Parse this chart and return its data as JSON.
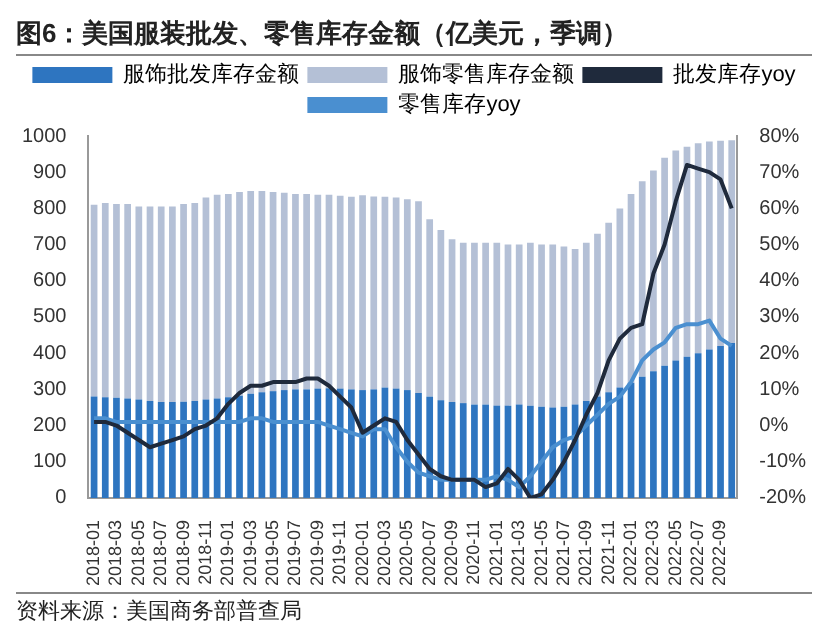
{
  "chart_data": {
    "type": "bar",
    "title": "图6：美国服装批发、零售库存金额（亿美元，季调）",
    "annotations": [
      "资料来源：美国商务部普查局"
    ],
    "categories": [
      "2018-01",
      null,
      "2018-03",
      null,
      "2018-05",
      null,
      "2018-07",
      null,
      "2018-09",
      null,
      "2018-11",
      null,
      "2019-01",
      null,
      "2019-03",
      null,
      "2019-05",
      null,
      "2019-07",
      null,
      "2019-09",
      null,
      "2019-11",
      null,
      "2020-01",
      null,
      "2020-03",
      null,
      "2020-05",
      null,
      "2020-07",
      null,
      "2020-09",
      null,
      "2020-11",
      null,
      "2021-01",
      null,
      "2021-03",
      null,
      "2021-05",
      null,
      "2021-07",
      null,
      "2021-09",
      null,
      "2021-11",
      null,
      "2022-01",
      null,
      "2022-03",
      null,
      "2022-05",
      null,
      "2022-07",
      null,
      "2022-09",
      null
    ],
    "stacked": true,
    "series": [
      {
        "name": "服饰批发库存金额",
        "color": "#2e75c0",
        "values": [
          280,
          278,
          277,
          275,
          272,
          268,
          265,
          265,
          266,
          268,
          272,
          275,
          278,
          282,
          288,
          292,
          295,
          298,
          300,
          300,
          302,
          303,
          302,
          300,
          298,
          300,
          305,
          302,
          298,
          290,
          280,
          270,
          265,
          262,
          258,
          258,
          255,
          255,
          258,
          255,
          252,
          250,
          252,
          258,
          268,
          280,
          292,
          305,
          318,
          335,
          350,
          365,
          380,
          390,
          400,
          410,
          420,
          428
        ]
      },
      {
        "name": "服饰零售库存金额",
        "color": "#b4c0d6",
        "values": [
          530,
          537,
          535,
          537,
          533,
          537,
          540,
          540,
          546,
          547,
          558,
          563,
          562,
          563,
          560,
          556,
          550,
          545,
          540,
          540,
          536,
          535,
          533,
          532,
          538,
          533,
          527,
          528,
          527,
          530,
          490,
          470,
          450,
          443,
          447,
          447,
          450,
          445,
          442,
          450,
          448,
          450,
          443,
          430,
          437,
          450,
          468,
          495,
          522,
          540,
          555,
          575,
          580,
          580,
          580,
          575,
          567,
          560
        ]
      },
      {
        "name": "批发库存yoy",
        "type": "line",
        "axis": "y2",
        "color": "#1f2a3c",
        "values": [
          1,
          1,
          0,
          -2,
          -4,
          -6,
          -5,
          -4,
          -3,
          -1,
          0,
          2,
          6,
          9,
          11,
          11,
          12,
          12,
          12,
          13,
          13,
          11,
          8,
          5,
          -2,
          0,
          2,
          1,
          -4,
          -8,
          -12,
          -14,
          -15,
          -15,
          -15,
          -17,
          -16,
          -12,
          -15,
          -20,
          -19,
          -15,
          -10,
          -4,
          3,
          9,
          18,
          24,
          27,
          28,
          42,
          50,
          62,
          72,
          71,
          70,
          68,
          60
        ]
      },
      {
        "name": "零售库存yoy",
        "type": "line",
        "axis": "y2",
        "color": "#4a8fd0",
        "values": [
          2,
          2,
          1,
          1,
          1,
          1,
          1,
          1,
          1,
          1,
          1,
          1,
          1,
          1,
          2,
          2,
          1,
          1,
          1,
          1,
          1,
          0,
          -1,
          -2,
          -3,
          -1,
          -1,
          -6,
          -10,
          -13,
          -14,
          -15,
          -15,
          -15,
          -15,
          -15,
          -14,
          -15,
          -17,
          -14,
          -10,
          -6,
          -4,
          -3,
          0,
          3,
          6,
          8,
          12,
          18,
          21,
          23,
          27,
          28,
          28,
          29,
          24,
          22
        ]
      }
    ],
    "ylim": [
      0,
      1000
    ],
    "yticks": [
      0,
      100,
      200,
      300,
      400,
      500,
      600,
      700,
      800,
      900,
      1000
    ],
    "y2lim": [
      -20,
      80
    ],
    "y2ticks": [
      {
        "value": -20,
        "label": "-20%"
      },
      {
        "value": -10,
        "label": "-10%"
      },
      {
        "value": 0,
        "label": "0%"
      },
      {
        "value": 10,
        "label": "10%"
      },
      {
        "value": 20,
        "label": "20%"
      },
      {
        "value": 30,
        "label": "30%"
      },
      {
        "value": 40,
        "label": "40%"
      },
      {
        "value": 50,
        "label": "50%"
      },
      {
        "value": 60,
        "label": "60%"
      },
      {
        "value": 70,
        "label": "70%"
      },
      {
        "value": 80,
        "label": "80%"
      }
    ],
    "grid": false,
    "legend": "top",
    "marker": "none",
    "line_style": "solid"
  }
}
